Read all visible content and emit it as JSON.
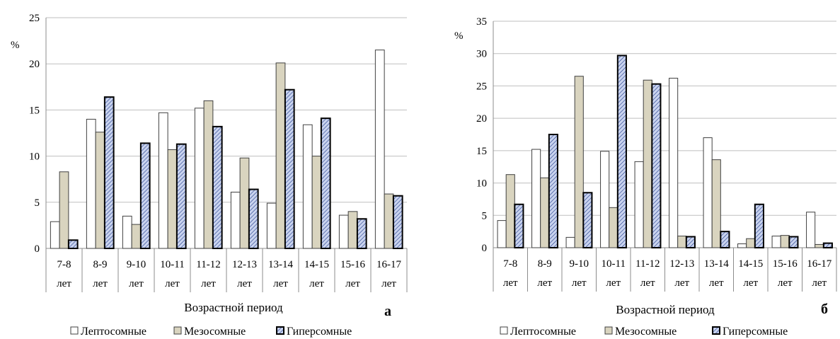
{
  "chart_data": [
    {
      "type": "bar",
      "panel_label": "а",
      "ylabel": "%",
      "xlabel": "Возрастной период",
      "ylim": [
        0,
        25
      ],
      "yticks": [
        "0",
        "5",
        "10",
        "15",
        "20",
        "25"
      ],
      "grid": true,
      "categories": [
        [
          "7-8",
          "лет"
        ],
        [
          "8-9",
          "лет"
        ],
        [
          "9-10",
          "лет"
        ],
        [
          "10-11",
          "лет"
        ],
        [
          "11-12",
          "лет"
        ],
        [
          "12-13",
          "лет"
        ],
        [
          "13-14",
          "лет"
        ],
        [
          "14-15",
          "лет"
        ],
        [
          "15-16",
          "лет"
        ],
        [
          "16-17",
          "лет"
        ]
      ],
      "series": [
        {
          "name": "Лептосомные",
          "values": [
            2.9,
            14.0,
            3.5,
            14.7,
            15.2,
            6.1,
            4.9,
            13.4,
            3.6,
            21.5
          ]
        },
        {
          "name": "Мезосомные",
          "values": [
            8.3,
            12.6,
            2.6,
            10.7,
            16.0,
            9.8,
            20.1,
            10.0,
            4.0,
            5.9
          ]
        },
        {
          "name": "Гиперсомные",
          "values": [
            0.9,
            16.4,
            11.4,
            11.3,
            13.2,
            6.4,
            17.2,
            14.1,
            3.2,
            5.7
          ]
        }
      ],
      "legend": [
        "Лептосомные",
        "Мезосомные",
        "Гиперсомные"
      ],
      "legend_position": "bottom"
    },
    {
      "type": "bar",
      "panel_label": "б",
      "ylabel": "%",
      "xlabel": "Возрастной период",
      "ylim": [
        0,
        35
      ],
      "yticks": [
        "0",
        "5",
        "10",
        "15",
        "20",
        "25",
        "30",
        "35"
      ],
      "grid": true,
      "categories": [
        [
          "7-8",
          "лет"
        ],
        [
          "8-9",
          "лет"
        ],
        [
          "9-10",
          "лет"
        ],
        [
          "10-11",
          "лет"
        ],
        [
          "11-12",
          "лет"
        ],
        [
          "12-13",
          "лет"
        ],
        [
          "13-14",
          "лет"
        ],
        [
          "14-15",
          "лет"
        ],
        [
          "15-16",
          "лет"
        ],
        [
          "16-17",
          "лет"
        ]
      ],
      "series": [
        {
          "name": "Лептосомные",
          "values": [
            4.2,
            15.2,
            1.6,
            14.9,
            13.3,
            26.2,
            17.0,
            0.6,
            1.8,
            5.5
          ]
        },
        {
          "name": "Мезосомные",
          "values": [
            11.3,
            10.8,
            26.5,
            6.2,
            25.9,
            1.8,
            13.6,
            1.4,
            1.9,
            0.5
          ]
        },
        {
          "name": "Гиперсомные",
          "values": [
            6.7,
            17.5,
            8.5,
            29.7,
            25.3,
            1.7,
            2.5,
            6.7,
            1.7,
            0.7
          ]
        }
      ],
      "legend": [
        "Лептосомные",
        "Мезосомные",
        "Гиперсомные"
      ],
      "legend_position": "bottom"
    }
  ],
  "colors": {
    "Лептосомные": "#ffffff",
    "Мезосомные": "#d9d4bf",
    "Гиперсомные": "#c9d3ee",
    "grid": "#bfbfbf",
    "axis": "#8c8c8c"
  }
}
